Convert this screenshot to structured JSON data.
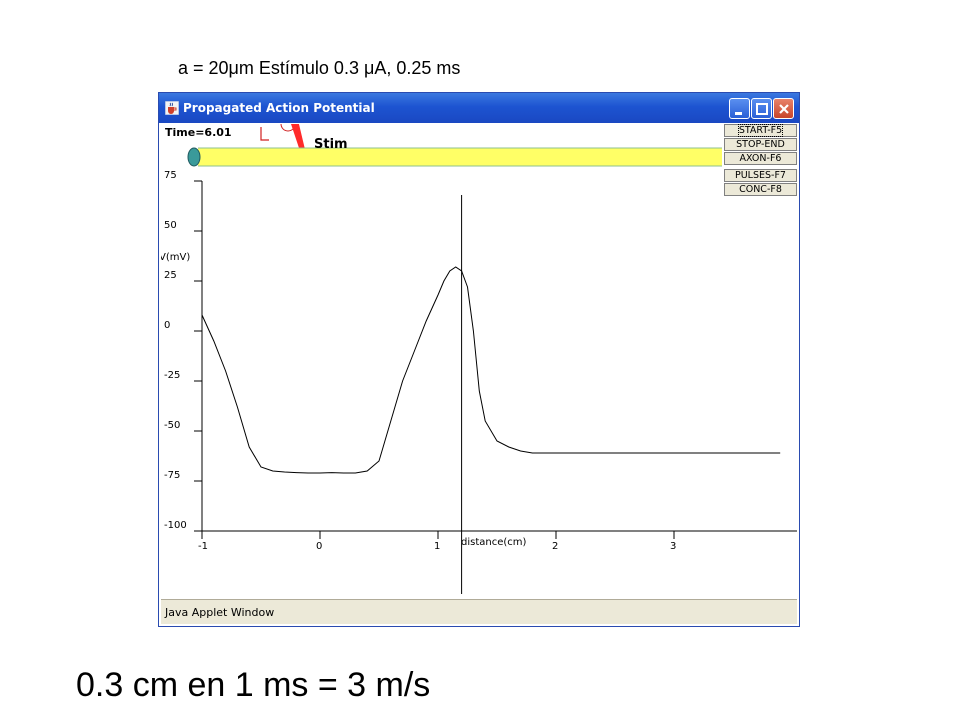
{
  "slide": {
    "title": "a = 20μm  Estímulo 0.3 μA, 0.25  ms",
    "footer": "0.3 cm en 1 ms = 3 m/s"
  },
  "window": {
    "title": "Propagated Action Potential",
    "status": "Java Applet Window",
    "accent_color": "#1d54d1"
  },
  "applet": {
    "time_label": "Time=6.01",
    "stim_label": "Stim",
    "axon_color": "#ffff66",
    "buttons": [
      "START-F5",
      "STOP-END",
      "AXON-F6",
      "PULSES-F7",
      "CONC-F8"
    ]
  },
  "chart_data": {
    "type": "line",
    "ylabel": "V(mV)",
    "xlabel": "distance(cm)",
    "xlim": [
      -1,
      3.9
    ],
    "ylim": [
      -100,
      75
    ],
    "yticks": [
      75,
      50,
      25,
      0,
      -25,
      -50,
      -75,
      -100
    ],
    "xticks": [
      -1,
      0,
      1,
      2,
      3
    ],
    "marker_x": 1.2,
    "series": [
      {
        "color": "#000000",
        "x": [
          -1.0,
          -0.9,
          -0.8,
          -0.7,
          -0.6,
          -0.5,
          -0.4,
          -0.3,
          -0.2,
          -0.1,
          0.0,
          0.1,
          0.2,
          0.3,
          0.4,
          0.5,
          0.55,
          0.6,
          0.7,
          0.8,
          0.9,
          1.0,
          1.05,
          1.1,
          1.15,
          1.2,
          1.25,
          1.3,
          1.35,
          1.4,
          1.5,
          1.6,
          1.7,
          1.8,
          2.0,
          2.5,
          3.0,
          3.5,
          3.9
        ],
        "y": [
          8,
          -5,
          -20,
          -38,
          -58,
          -68,
          -70,
          -70.5,
          -70.8,
          -71,
          -71,
          -70.8,
          -71,
          -71,
          -70,
          -65,
          -55,
          -45,
          -25,
          -10,
          5,
          18,
          25,
          30,
          32,
          30,
          22,
          0,
          -30,
          -45,
          -55,
          -58,
          -60,
          -61,
          -61,
          -61,
          -61,
          -61,
          -61
        ]
      }
    ]
  }
}
